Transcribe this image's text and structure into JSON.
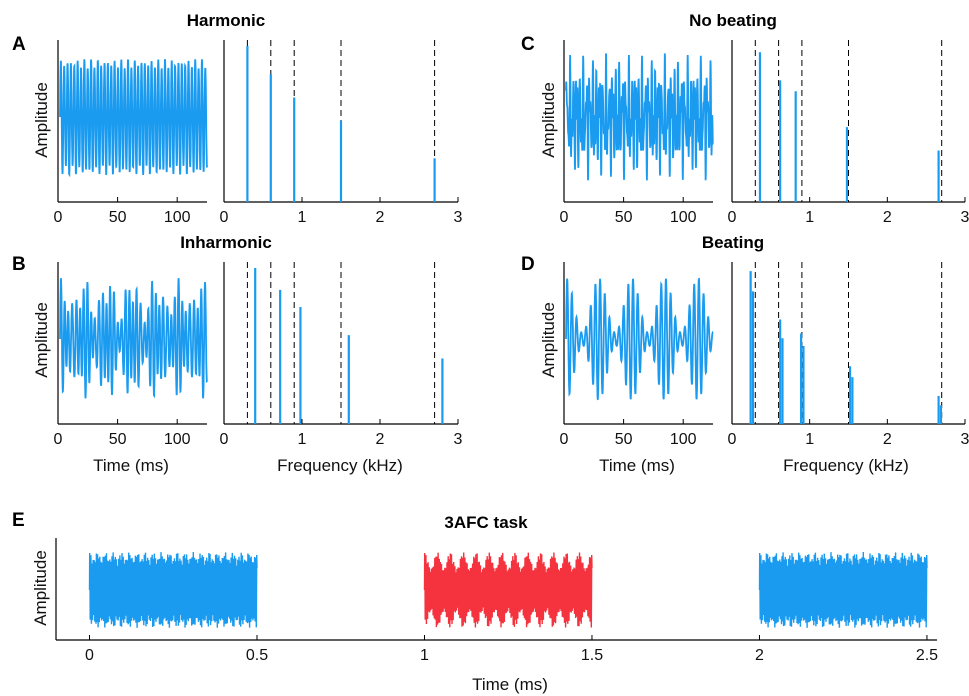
{
  "colors": {
    "blue": "#1a9bf0",
    "red": "#f5333f"
  },
  "chart_data": [
    {
      "panel": "A",
      "title": "Harmonic",
      "waveform": {
        "type": "line",
        "ylabel": "Amplitude",
        "xlabel": "",
        "xlim": [
          0,
          125
        ],
        "xticks": [
          0,
          50,
          100
        ],
        "description_kind": "periodic"
      },
      "spectrum": {
        "type": "bar",
        "xlabel": "",
        "xlim": [
          0,
          3
        ],
        "xticks": [
          0,
          1,
          2,
          3
        ],
        "reference_kHz": [
          0.3,
          0.6,
          0.9,
          1.5,
          2.7
        ],
        "components": [
          {
            "f": 0.3,
            "a": 1.0
          },
          {
            "f": 0.6,
            "a": 0.82
          },
          {
            "f": 0.9,
            "a": 0.67
          },
          {
            "f": 1.5,
            "a": 0.52
          },
          {
            "f": 2.7,
            "a": 0.28
          }
        ]
      }
    },
    {
      "panel": "B",
      "title": "Inharmonic",
      "waveform": {
        "type": "line",
        "ylabel": "Amplitude",
        "xlabel": "Time (ms)",
        "xlim": [
          0,
          125
        ],
        "xticks": [
          0,
          50,
          100
        ]
      },
      "spectrum": {
        "type": "bar",
        "xlabel": "Frequency (kHz)",
        "xlim": [
          0,
          3
        ],
        "xticks": [
          0,
          1,
          2,
          3
        ],
        "reference_kHz": [
          0.3,
          0.6,
          0.9,
          1.5,
          2.7
        ],
        "components": [
          {
            "f": 0.4,
            "a": 1.0
          },
          {
            "f": 0.72,
            "a": 0.86
          },
          {
            "f": 0.98,
            "a": 0.75
          },
          {
            "f": 1.6,
            "a": 0.57
          },
          {
            "f": 2.8,
            "a": 0.42
          }
        ]
      }
    },
    {
      "panel": "C",
      "title": "No beating",
      "waveform": {
        "type": "line",
        "ylabel": "Amplitude",
        "xlabel": "",
        "xlim": [
          0,
          125
        ],
        "xticks": [
          0,
          50,
          100
        ]
      },
      "spectrum": {
        "type": "bar",
        "xlabel": "",
        "xlim": [
          0,
          3
        ],
        "xticks": [
          0,
          1,
          2,
          3
        ],
        "reference_kHz": [
          0.3,
          0.6,
          0.9,
          1.5,
          2.7
        ],
        "components": [
          {
            "f": 0.36,
            "a": 0.96
          },
          {
            "f": 0.62,
            "a": 0.78
          },
          {
            "f": 0.82,
            "a": 0.71
          },
          {
            "f": 1.48,
            "a": 0.48
          },
          {
            "f": 2.66,
            "a": 0.33
          }
        ]
      }
    },
    {
      "panel": "D",
      "title": "Beating",
      "waveform": {
        "type": "line",
        "ylabel": "Amplitude",
        "xlabel": "Time (ms)",
        "xlim": [
          0,
          125
        ],
        "xticks": [
          0,
          50,
          100
        ]
      },
      "spectrum": {
        "type": "bar",
        "xlabel": "Frequency (kHz)",
        "xlim": [
          0,
          3
        ],
        "xticks": [
          0,
          1,
          2,
          3
        ],
        "reference_kHz": [
          0.3,
          0.6,
          0.9,
          1.5,
          2.7
        ],
        "components": [
          {
            "f": 0.24,
            "a": 0.98
          },
          {
            "f": 0.27,
            "a": 0.85
          },
          {
            "f": 0.62,
            "a": 0.67
          },
          {
            "f": 0.65,
            "a": 0.55
          },
          {
            "f": 0.89,
            "a": 0.58
          },
          {
            "f": 0.92,
            "a": 0.5
          },
          {
            "f": 1.52,
            "a": 0.37
          },
          {
            "f": 1.55,
            "a": 0.3
          },
          {
            "f": 2.66,
            "a": 0.18
          },
          {
            "f": 2.69,
            "a": 0.12
          }
        ]
      }
    },
    {
      "panel": "E",
      "title": "3AFC task",
      "type": "line",
      "ylabel": "Amplitude",
      "xlabel": "Time (ms)",
      "xlim": [
        -0.1,
        2.53
      ],
      "xticks": [
        0,
        0.5,
        1,
        1.5,
        2,
        2.5
      ],
      "xtick_labels": [
        "0",
        "0.5",
        "1",
        "1.5",
        "2",
        "2.5"
      ],
      "intervals": [
        {
          "start": 0,
          "end": 0.5,
          "color": "blue"
        },
        {
          "start": 1,
          "end": 1.5,
          "color": "red"
        },
        {
          "start": 2,
          "end": 2.5,
          "color": "blue"
        }
      ]
    }
  ]
}
